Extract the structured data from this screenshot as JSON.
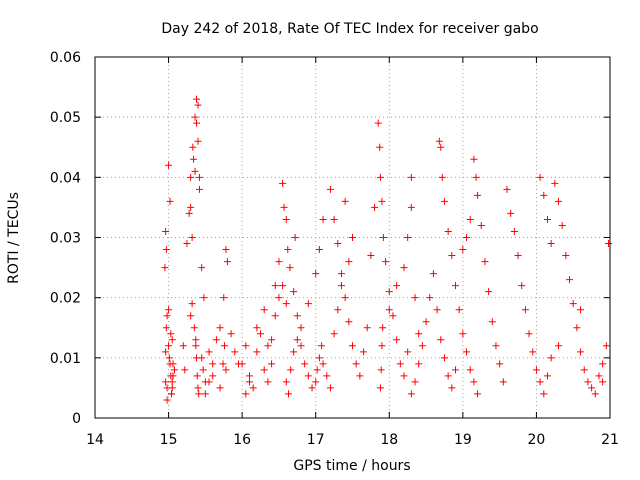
{
  "chart_data": {
    "type": "scatter",
    "title": "Day 242 of 2018, Rate Of TEC Index for receiver gabo",
    "xlabel": "GPS time / hours",
    "ylabel": "ROTI / TECUs",
    "xlim": [
      14,
      21
    ],
    "ylim": [
      0,
      0.06
    ],
    "xticks": [
      14,
      15,
      16,
      17,
      18,
      19,
      20,
      21
    ],
    "xtick_labels": [
      "14",
      "15",
      "16",
      "17",
      "18",
      "19",
      "20",
      "21"
    ],
    "yticks": [
      0,
      0.01,
      0.02,
      0.03,
      0.04,
      0.05,
      0.06
    ],
    "ytick_labels": [
      "0",
      "0.01",
      "0.02",
      "0.03",
      "0.04",
      "0.05",
      "0.06"
    ],
    "grid": true,
    "marker": "+",
    "color": "#ff0000",
    "series": [
      {
        "name": "ROTI",
        "x": [
          14.95,
          14.96,
          14.97,
          14.98,
          15.0,
          15.02,
          15.05,
          15.08,
          14.96,
          14.98,
          15.0,
          15.02,
          15.04,
          15.06,
          14.96,
          14.97,
          15.0,
          15.03,
          15.05,
          15.04,
          15.06,
          14.98,
          15.01,
          15.03,
          15.05,
          15.2,
          15.22,
          15.25,
          15.28,
          15.3,
          15.33,
          15.36,
          15.38,
          15.4,
          15.42,
          15.45,
          15.48,
          15.3,
          15.32,
          15.34,
          15.36,
          15.38,
          15.4,
          15.42,
          15.37,
          15.38,
          15.39,
          15.4,
          15.41,
          15.3,
          15.32,
          15.35,
          15.37,
          15.45,
          15.47,
          15.5,
          15.55,
          15.6,
          15.65,
          15.7,
          15.75,
          15.78,
          15.8,
          15.5,
          15.55,
          15.6,
          15.7,
          15.74,
          15.76,
          15.78,
          15.85,
          15.9,
          15.95,
          16.0,
          16.05,
          16.1,
          16.15,
          16.2,
          16.25,
          16.3,
          16.35,
          16.4,
          16.45,
          16.5,
          16.55,
          16.6,
          16.05,
          16.1,
          16.2,
          16.3,
          16.35,
          16.4,
          16.45,
          16.5,
          16.55,
          16.57,
          16.6,
          16.62,
          16.65,
          16.7,
          16.72,
          16.75,
          16.8,
          16.85,
          16.9,
          16.95,
          16.6,
          16.63,
          16.66,
          16.7,
          16.75,
          16.8,
          16.9,
          17.0,
          17.05,
          17.1,
          17.0,
          17.02,
          17.05,
          17.08,
          17.1,
          17.15,
          17.2,
          17.25,
          17.3,
          17.35,
          17.4,
          17.45,
          17.5,
          17.2,
          17.25,
          17.3,
          17.35,
          17.4,
          17.45,
          17.5,
          17.55,
          17.6,
          17.65,
          17.7,
          17.75,
          17.8,
          17.85,
          17.87,
          17.88,
          17.9,
          17.92,
          17.95,
          18.0,
          18.05,
          18.1,
          18.15,
          18.2,
          18.25,
          18.3,
          17.88,
          17.89,
          17.9,
          17.91,
          18.0,
          18.1,
          18.2,
          18.25,
          18.3,
          18.35,
          18.4,
          18.3,
          18.35,
          18.4,
          18.45,
          18.5,
          18.55,
          18.6,
          18.65,
          18.7,
          18.75,
          18.8,
          18.85,
          18.9,
          18.68,
          18.7,
          18.72,
          18.75,
          18.8,
          18.85,
          18.9,
          18.95,
          19.0,
          19.05,
          19.1,
          19.15,
          19.2,
          19.0,
          19.05,
          19.1,
          19.15,
          19.18,
          19.2,
          19.25,
          19.3,
          19.35,
          19.4,
          19.45,
          19.5,
          19.55,
          19.6,
          19.65,
          19.7,
          19.75,
          19.8,
          19.85,
          19.9,
          19.95,
          20.0,
          20.05,
          20.1,
          20.15,
          20.2,
          20.05,
          20.1,
          20.15,
          20.2,
          20.25,
          20.3,
          20.35,
          20.4,
          20.45,
          20.5,
          20.55,
          20.6,
          20.65,
          20.7,
          20.75,
          20.8,
          20.85,
          20.9,
          20.95,
          20.98,
          20.3,
          20.6,
          20.9
        ],
        "y": [
          0.025,
          0.031,
          0.028,
          0.017,
          0.042,
          0.036,
          0.013,
          0.008,
          0.006,
          0.005,
          0.012,
          0.009,
          0.004,
          0.007,
          0.011,
          0.015,
          0.018,
          0.014,
          0.006,
          0.004,
          0.009,
          0.003,
          0.01,
          0.007,
          0.005,
          0.012,
          0.008,
          0.029,
          0.034,
          0.04,
          0.045,
          0.05,
          0.053,
          0.046,
          0.038,
          0.025,
          0.02,
          0.035,
          0.03,
          0.043,
          0.041,
          0.049,
          0.052,
          0.04,
          0.013,
          0.01,
          0.007,
          0.005,
          0.004,
          0.017,
          0.019,
          0.015,
          0.012,
          0.01,
          0.008,
          0.006,
          0.011,
          0.009,
          0.013,
          0.015,
          0.02,
          0.028,
          0.026,
          0.004,
          0.006,
          0.007,
          0.005,
          0.009,
          0.012,
          0.008,
          0.014,
          0.011,
          0.009,
          0.009,
          0.012,
          0.007,
          0.005,
          0.011,
          0.014,
          0.008,
          0.006,
          0.013,
          0.017,
          0.02,
          0.022,
          0.019,
          0.004,
          0.006,
          0.015,
          0.018,
          0.012,
          0.009,
          0.022,
          0.026,
          0.039,
          0.035,
          0.033,
          0.028,
          0.025,
          0.021,
          0.03,
          0.017,
          0.012,
          0.009,
          0.007,
          0.005,
          0.006,
          0.004,
          0.008,
          0.011,
          0.013,
          0.015,
          0.019,
          0.024,
          0.028,
          0.033,
          0.006,
          0.008,
          0.01,
          0.012,
          0.009,
          0.007,
          0.005,
          0.014,
          0.018,
          0.022,
          0.036,
          0.026,
          0.03,
          0.038,
          0.033,
          0.029,
          0.024,
          0.02,
          0.016,
          0.012,
          0.009,
          0.007,
          0.011,
          0.015,
          0.027,
          0.035,
          0.049,
          0.045,
          0.04,
          0.036,
          0.03,
          0.026,
          0.021,
          0.017,
          0.013,
          0.009,
          0.007,
          0.011,
          0.04,
          0.005,
          0.008,
          0.012,
          0.015,
          0.018,
          0.022,
          0.025,
          0.03,
          0.035,
          0.02,
          0.014,
          0.004,
          0.006,
          0.009,
          0.012,
          0.016,
          0.02,
          0.024,
          0.018,
          0.013,
          0.01,
          0.007,
          0.005,
          0.008,
          0.046,
          0.045,
          0.04,
          0.036,
          0.031,
          0.027,
          0.022,
          0.018,
          0.014,
          0.011,
          0.008,
          0.006,
          0.004,
          0.028,
          0.03,
          0.033,
          0.043,
          0.04,
          0.037,
          0.032,
          0.026,
          0.021,
          0.016,
          0.012,
          0.009,
          0.006,
          0.038,
          0.034,
          0.031,
          0.027,
          0.022,
          0.018,
          0.014,
          0.011,
          0.008,
          0.006,
          0.004,
          0.007,
          0.01,
          0.04,
          0.037,
          0.033,
          0.029,
          0.039,
          0.036,
          0.032,
          0.027,
          0.023,
          0.019,
          0.015,
          0.011,
          0.008,
          0.006,
          0.005,
          0.004,
          0.007,
          0.009,
          0.012,
          0.029,
          0.012,
          0.018,
          0.006
        ]
      }
    ]
  }
}
